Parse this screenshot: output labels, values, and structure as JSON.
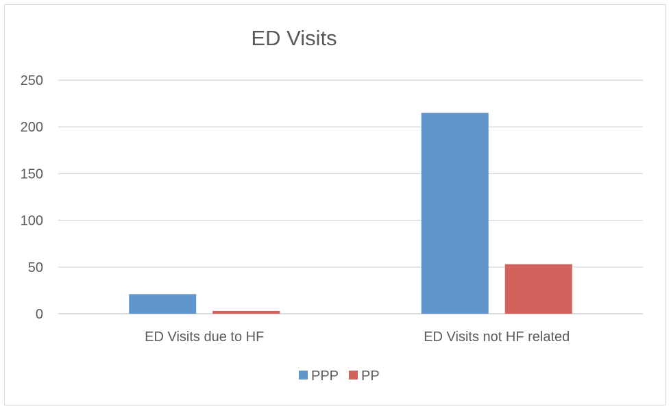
{
  "chart_data": {
    "type": "bar",
    "title": "ED Visits",
    "categories": [
      "ED Visits due to HF",
      "ED Visits not HF related"
    ],
    "series": [
      {
        "name": "PPP",
        "color": "#6196cc",
        "values": [
          21,
          215
        ]
      },
      {
        "name": "PP",
        "color": "#d2625c",
        "values": [
          3,
          53
        ]
      }
    ],
    "ylim": [
      0,
      250
    ],
    "yticks": [
      0,
      50,
      100,
      150,
      200,
      250
    ],
    "grid": true,
    "legend_position": "bottom"
  }
}
